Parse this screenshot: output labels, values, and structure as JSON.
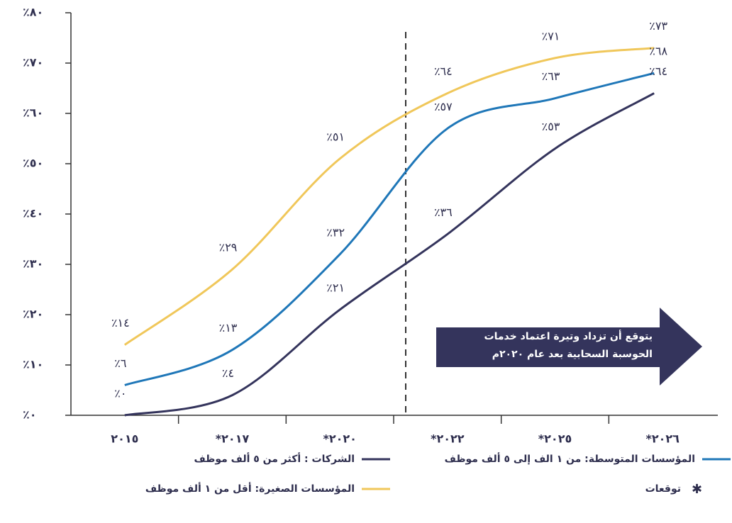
{
  "chart_data": {
    "type": "line",
    "categories": [
      "٢٠١٥",
      "*٢٠١٧",
      "*٢٠٢٠",
      "*٢٠٢٢",
      "*٢٠٢٥",
      "*٢٠٢٦"
    ],
    "series": [
      {
        "name": "المؤسسات الصغيرة: أقل من ١ ألف موظف",
        "color": "#f0c75a",
        "values": [
          14,
          29,
          51,
          64,
          71,
          73
        ],
        "value_labels": [
          "٪١٤",
          "٪٢٩",
          "٪٥١",
          "٪٦٤",
          "٪٧١",
          "٪٧٣"
        ]
      },
      {
        "name": "المؤسسات المتوسطة: من ١ الف إلى ٥ ألف موظف",
        "color": "#1f77b8",
        "values": [
          6,
          13,
          32,
          57,
          63,
          68
        ],
        "value_labels": [
          "٪٦",
          "٪١٣",
          "٪٣٢",
          "٪٥٧",
          "٪٦٣",
          "٪٦٨"
        ]
      },
      {
        "name": "الشركات : أكثر من ٥ ألف موظف",
        "color": "#34345c",
        "values": [
          0,
          4,
          21,
          36,
          53,
          64
        ],
        "value_labels": [
          "٪٠",
          "٪٤",
          "٪٢١",
          "٪٣٦",
          "٪٥٣",
          "٪٦٤"
        ]
      }
    ],
    "ylim": [
      0,
      80
    ],
    "yticks": [
      {
        "value": 0,
        "label": "٪٠"
      },
      {
        "value": 10,
        "label": "٪١٠"
      },
      {
        "value": 20,
        "label": "٪٢٠"
      },
      {
        "value": 30,
        "label": "٪٣٠"
      },
      {
        "value": 40,
        "label": "٪٤٠"
      },
      {
        "value": 50,
        "label": "٪٥٠"
      },
      {
        "value": 60,
        "label": "٪٦٠"
      },
      {
        "value": 70,
        "label": "٪٧٠"
      },
      {
        "value": 80,
        "label": "٪٨٠"
      }
    ],
    "annotation": [
      "يتوقع أن تزداد وتيرة اعتماد خدمات",
      "الحوسبة السحابية بعد عام ٢٠٢٠م"
    ],
    "footnote": "توقعات"
  }
}
